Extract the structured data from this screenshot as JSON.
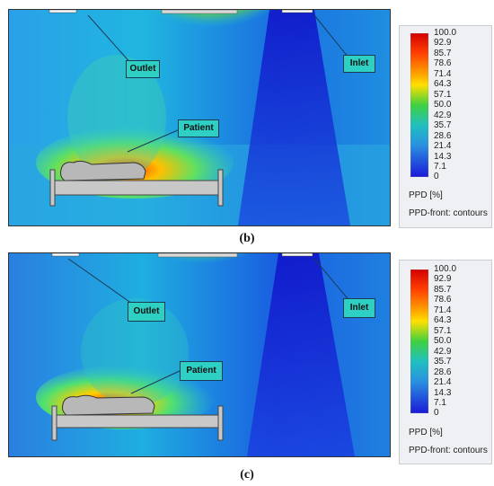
{
  "panels": [
    {
      "caption": "(b)",
      "labels": {
        "outlet": "Outlet",
        "inlet": "Inlet",
        "patient": "Patient"
      },
      "legend": {
        "ticks": [
          "100.0",
          "92.9",
          "85.7",
          "78.6",
          "71.4",
          "64.3",
          "57.1",
          "50.0",
          "42.9",
          "35.7",
          "28.6",
          "21.4",
          "14.3",
          "7.1",
          "0"
        ],
        "title": "PPD [%]",
        "subtitle": "PPD-front: contours"
      }
    },
    {
      "caption": "(c)",
      "labels": {
        "outlet": "Outlet",
        "inlet": "Inlet",
        "patient": "Patient"
      },
      "legend": {
        "ticks": [
          "100.0",
          "92.9",
          "85.7",
          "78.6",
          "71.4",
          "64.3",
          "57.1",
          "50.0",
          "42.9",
          "35.7",
          "28.6",
          "21.4",
          "14.3",
          "7.1",
          "0"
        ],
        "title": "PPD [%]",
        "subtitle": "PPD-front: contours"
      }
    }
  ],
  "colors": {
    "background_field": "#1f78e0",
    "bar_top": "#d40000",
    "bar_bottom": "#1a1ad8"
  }
}
